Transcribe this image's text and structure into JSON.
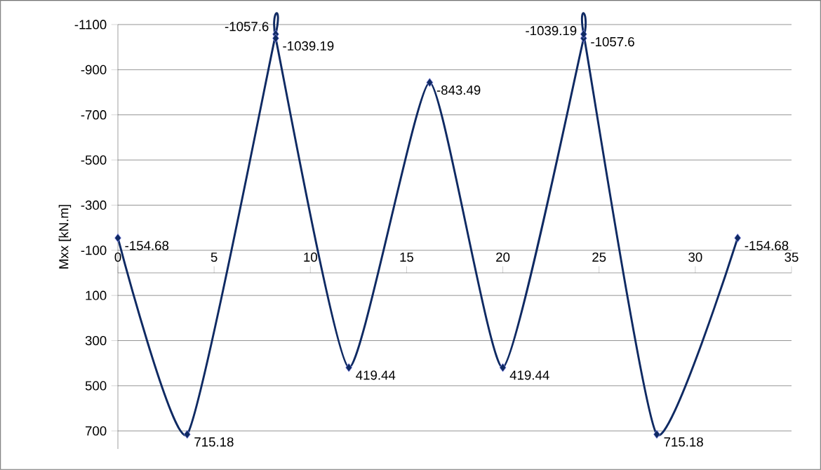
{
  "chart_data": {
    "type": "line",
    "ylabel": "Mxx [kN.m]",
    "x": [
      0,
      3.6,
      8.2,
      8.2,
      12,
      16.2,
      20,
      24.2,
      24.2,
      28,
      32.2
    ],
    "values": [
      -154.68,
      715.18,
      -1057.6,
      -1039.19,
      419.44,
      -843.49,
      419.44,
      -1039.19,
      -1057.6,
      715.18,
      -154.68
    ],
    "color": "#0f2a63",
    "marker": "diamond",
    "line_style": "solid",
    "data_labels": true,
    "grid": "y",
    "xlim": [
      0,
      35
    ],
    "xticks": [
      0,
      5,
      10,
      15,
      20,
      25,
      30,
      35
    ],
    "ylim": [
      780,
      -1100
    ],
    "yticks": [
      -1100,
      -900,
      -700,
      -500,
      -300,
      -100,
      100,
      300,
      500,
      700
    ]
  }
}
